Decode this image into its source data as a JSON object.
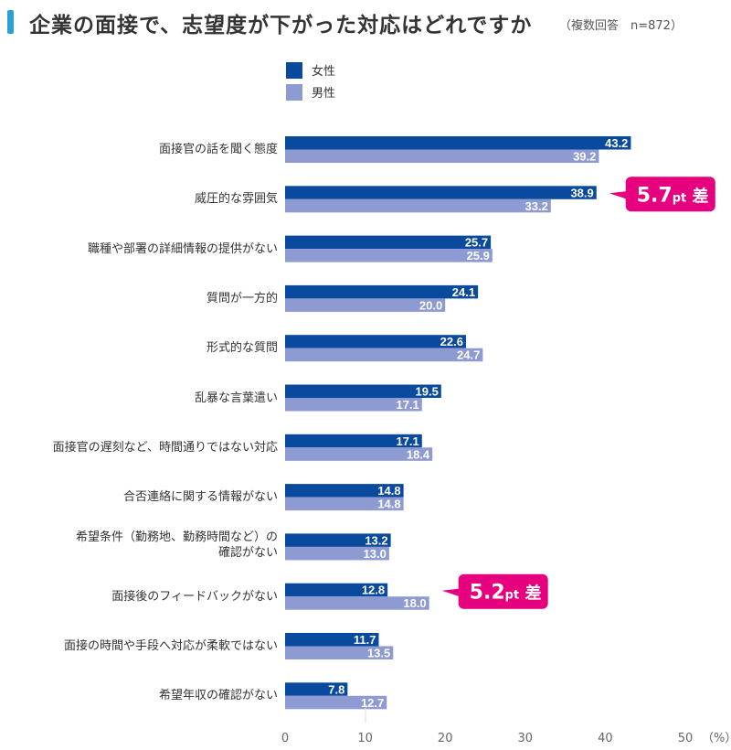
{
  "title": "企業の面接で、志望度が下がった対応はどれですか",
  "subtitle": "（複数回答　n=872）",
  "colors": {
    "female": "#0a4a9e",
    "male": "#8e9ad2",
    "accent": "#2aa0d8",
    "callout": "#e6007e"
  },
  "chart_data": {
    "type": "bar",
    "orientation": "horizontal",
    "categories": [
      "面接官の話を聞く態度",
      "威圧的な雰囲気",
      "職種や部署の詳細情報の提供がない",
      "質問が一方的",
      "形式的な質問",
      "乱暴な言葉遣い",
      "面接官の遅刻など、時間通りではない対応",
      "合否連絡に関する情報がない",
      "希望条件（勤務地、勤務時間など）の確認がない",
      "面接後のフィードバックがない",
      "面接の時間や手段へ対応が柔軟ではない",
      "希望年収の確認がない"
    ],
    "series": [
      {
        "name": "女性",
        "values": [
          43.2,
          38.9,
          25.7,
          24.1,
          22.6,
          19.5,
          17.1,
          14.8,
          13.2,
          12.8,
          11.7,
          7.8
        ]
      },
      {
        "name": "男性",
        "values": [
          39.2,
          33.2,
          25.9,
          20.0,
          24.7,
          17.1,
          18.4,
          14.8,
          13.0,
          18.0,
          13.5,
          12.7
        ]
      }
    ],
    "xlim": [
      0,
      50
    ],
    "xticks": [
      "0",
      "10",
      "20",
      "30",
      "40",
      "50"
    ],
    "xunit": "（%）",
    "legend": "top-left",
    "annotations": [
      {
        "category_index": 1,
        "value": "5.7",
        "unit": "pt",
        "suffix": "差"
      },
      {
        "category_index": 9,
        "value": "5.2",
        "unit": "pt",
        "suffix": "差"
      }
    ]
  }
}
